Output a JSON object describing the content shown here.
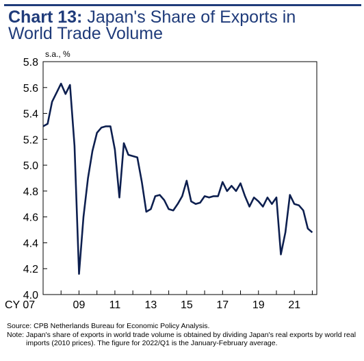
{
  "title": {
    "number": "Chart 13:",
    "text_line1": " Japan's Share of Exports in",
    "text_line2": "World Trade Volume"
  },
  "chart_data": {
    "type": "line",
    "unit_label": "s.a., %",
    "x_tick_labels": [
      "CY 07",
      "09",
      "11",
      "13",
      "15",
      "17",
      "19",
      "21"
    ],
    "x_tick_years": [
      2007,
      2009,
      2011,
      2013,
      2015,
      2017,
      2019,
      2021
    ],
    "xlim": [
      2007,
      2022.25
    ],
    "ylim": [
      4.0,
      5.8
    ],
    "y_ticks": [
      "4.0",
      "4.2",
      "4.4",
      "4.6",
      "4.8",
      "5.0",
      "5.2",
      "5.4",
      "5.6",
      "5.8"
    ],
    "line_color": "#0d1f4f",
    "series": [
      {
        "values": [
          5.3,
          5.32,
          5.49,
          5.56,
          5.63,
          5.55,
          5.62,
          5.15,
          4.16,
          4.6,
          4.9,
          5.11,
          5.25,
          5.29,
          5.3,
          5.3,
          5.12,
          4.75,
          5.17,
          5.08,
          5.07,
          5.06,
          4.87,
          4.64,
          4.66,
          4.76,
          4.77,
          4.73,
          4.66,
          4.65,
          4.7,
          4.76,
          4.88,
          4.72,
          4.7,
          4.71,
          4.76,
          4.75,
          4.76,
          4.76,
          4.87,
          4.8,
          4.84,
          4.8,
          4.86,
          4.76,
          4.68,
          4.75,
          4.72,
          4.68,
          4.75,
          4.7,
          4.75,
          4.31,
          4.48,
          4.77,
          4.7,
          4.69,
          4.65,
          4.51,
          4.48
        ]
      }
    ]
  },
  "notes": {
    "source_label": "Source: ",
    "source_text": "CPB Netherlands Bureau for Economic Policy Analysis.",
    "note_label": "Note: ",
    "note_text": "Japan's share of exports in world trade volume is obtained by dividing Japan's real exports by world real imports (2010 prices). The figure for 2022/Q1 is the January-February average."
  }
}
